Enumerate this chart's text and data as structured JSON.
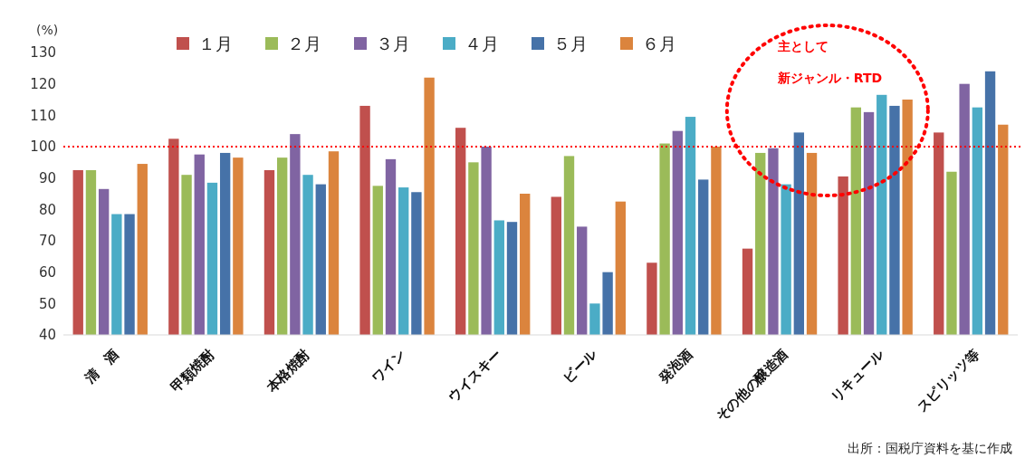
{
  "chart_data": {
    "type": "bar",
    "ylabel": "(%)",
    "categories": [
      "清　酒",
      "甲類焼酎",
      "本格焼酎",
      "ワイン",
      "ウイスキー",
      "ビール",
      "発泡酒",
      "その他の醸造酒",
      "リキュール",
      "スピリッツ等"
    ],
    "series": [
      {
        "name": "１月",
        "color": "#c0504d",
        "values": [
          92.5,
          102.5,
          92.5,
          113,
          106,
          84,
          63,
          67.5,
          90.5,
          104.5
        ]
      },
      {
        "name": "２月",
        "color": "#9bbb59",
        "values": [
          92.5,
          91,
          96.5,
          87.5,
          95,
          97,
          101,
          98,
          112.5,
          92
        ]
      },
      {
        "name": "３月",
        "color": "#8064a2",
        "values": [
          86.5,
          97.5,
          104,
          96,
          100,
          74.5,
          105,
          99.5,
          111,
          120
        ]
      },
      {
        "name": "４月",
        "color": "#4bacc6",
        "values": [
          78.5,
          88.5,
          91,
          87,
          76.5,
          50,
          109.5,
          88,
          116.5,
          112.5
        ]
      },
      {
        "name": "５月",
        "color": "#4672a8",
        "values": [
          78.5,
          98,
          88,
          85.5,
          76,
          60,
          89.5,
          104.5,
          113,
          124
        ]
      },
      {
        "name": "６月",
        "color": "#db843d",
        "values": [
          94.5,
          96.5,
          98.5,
          122,
          85,
          82.5,
          100,
          98,
          115,
          107
        ]
      }
    ],
    "ylim": [
      40,
      130
    ],
    "yticks": [
      40,
      50,
      60,
      70,
      80,
      90,
      100,
      110,
      120,
      130
    ],
    "ref_lines": [
      {
        "axis": "y",
        "value": 100,
        "color": "#ff0000",
        "line_style": "dotted"
      }
    ],
    "annotations": [
      "主として",
      "新ジャンル・RTD",
      "出所：国税庁資料を基に作成"
    ],
    "legend": "top"
  }
}
